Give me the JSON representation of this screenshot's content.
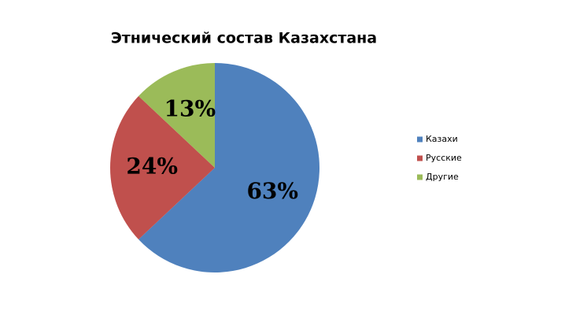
{
  "chart_data": {
    "type": "pie",
    "title": "Этнический состав Казахстана",
    "categories": [
      "Казахи",
      "Русские",
      "Другие"
    ],
    "values": [
      63,
      24,
      13
    ],
    "value_labels": [
      "63%",
      "24%",
      "13%"
    ],
    "colors": [
      "#4f81bd",
      "#c0504d",
      "#9bbb59"
    ],
    "legend": "right"
  }
}
